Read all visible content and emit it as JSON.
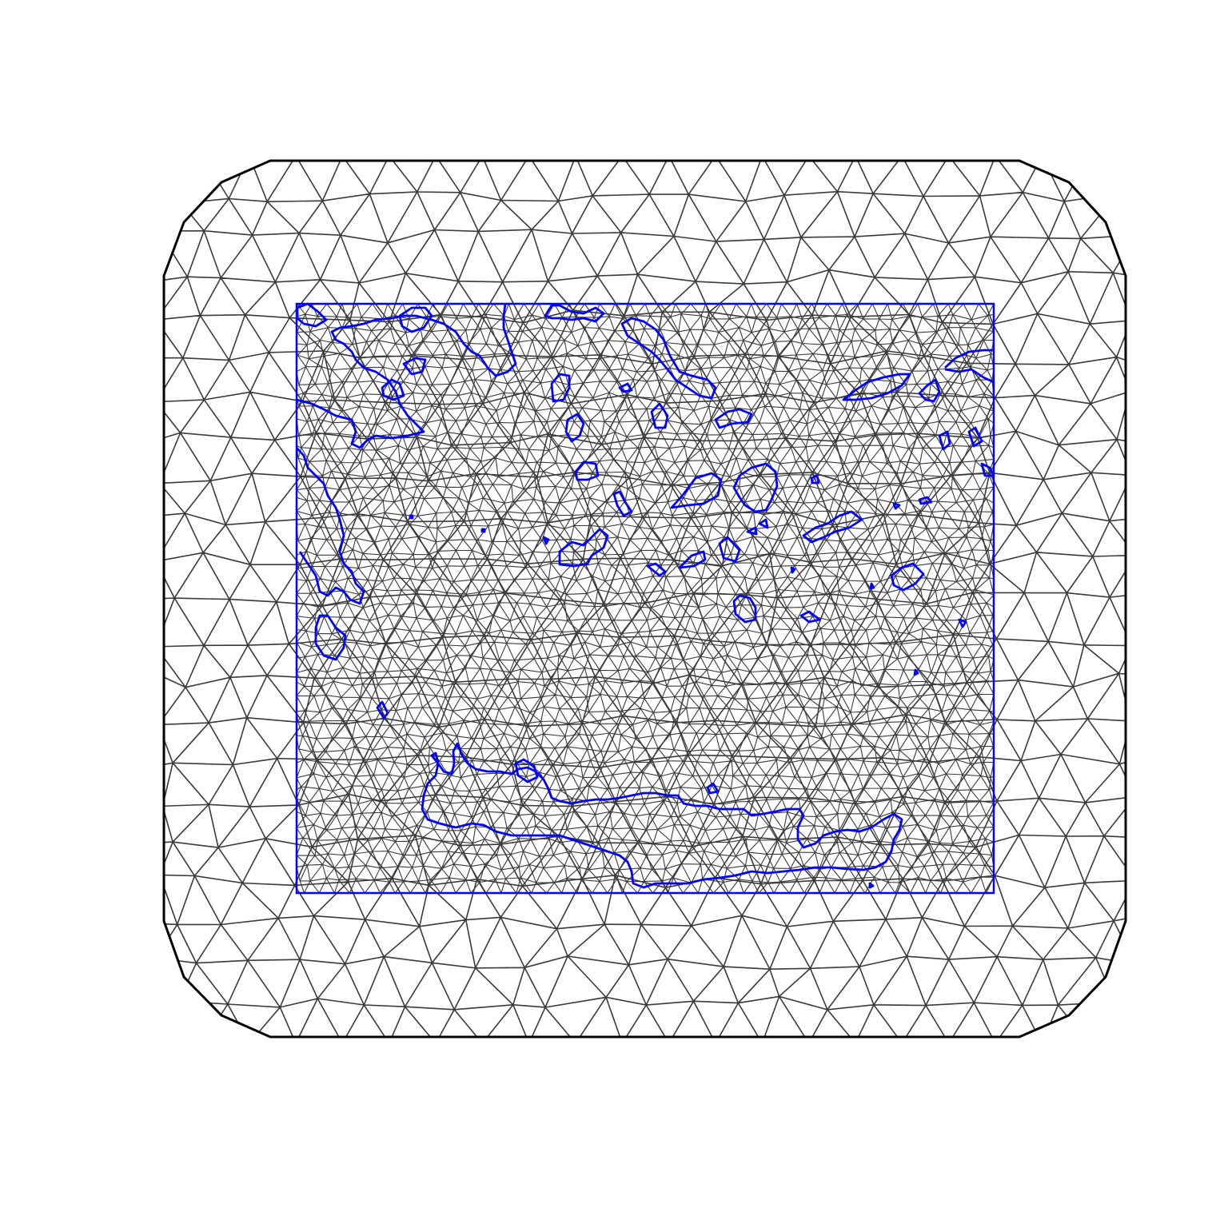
{
  "colors": {
    "background": "#ffffff",
    "mesh_edges": "#3a3a3a",
    "outer_boundary": "#000000",
    "inner_boundary_and_coastlines": "#0000ff"
  }
}
